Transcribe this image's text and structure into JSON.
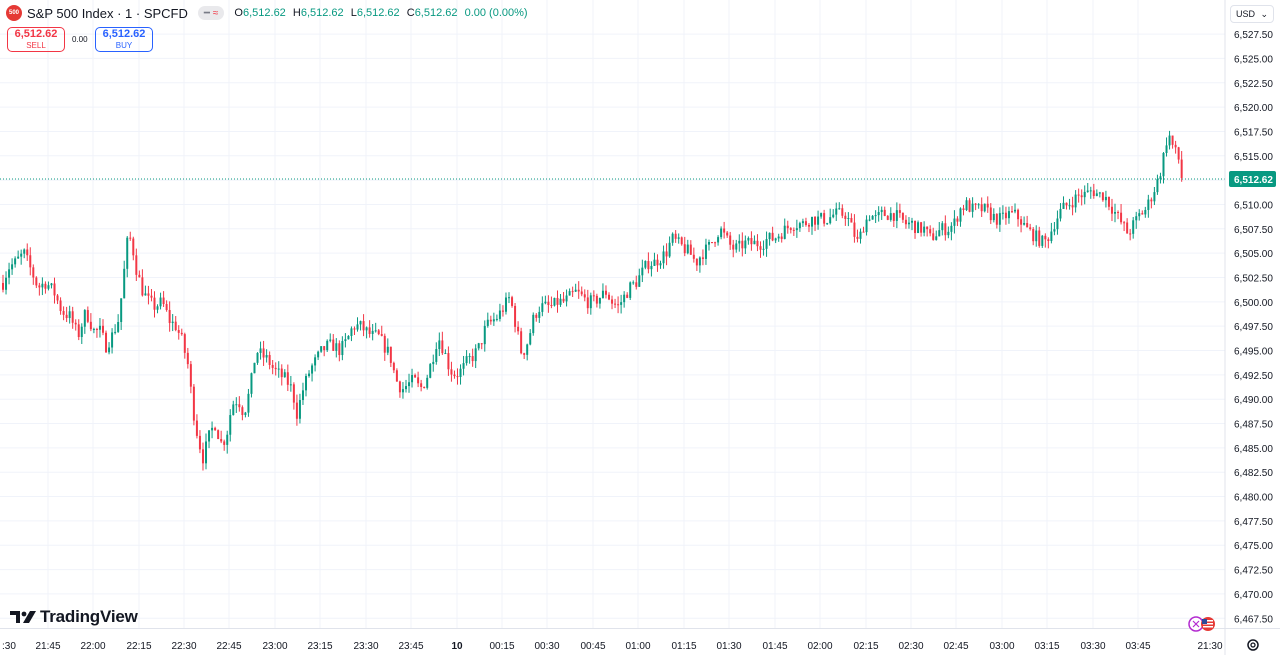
{
  "header": {
    "symbol_badge": "500",
    "symbol_name": "S&P 500 Index · 1 · SPCFD",
    "ohlc": {
      "o_label": "O",
      "o_value": "6,512.62",
      "h_label": "H",
      "h_value": "6,512.62",
      "l_label": "L",
      "l_value": "6,512.62",
      "c_label": "C",
      "c_value": "6,512.62",
      "change": "0.00 (0.00%)"
    }
  },
  "trade": {
    "sell_price": "6,512.62",
    "sell_label": "SELL",
    "spread": "0.00",
    "buy_price": "6,512.62",
    "buy_label": "BUY"
  },
  "currency": "USD",
  "brand": "TradingView",
  "colors": {
    "up": "#089981",
    "down": "#f23645",
    "last_price_line": "#089981"
  },
  "chart_data": {
    "type": "candlestick",
    "symbol": "S&P 500 Index",
    "interval": "1",
    "ylim": [
      6466.5,
      6531
    ],
    "y_ticks": [
      6527.5,
      6525,
      6522.5,
      6520,
      6517.5,
      6515,
      6512.5,
      6510,
      6507.5,
      6505,
      6502.5,
      6500,
      6497.5,
      6495,
      6492.5,
      6490,
      6487.5,
      6485,
      6482.5,
      6480,
      6477.5,
      6475,
      6472.5,
      6470,
      6467.5
    ],
    "y_tick_labels": [
      "6,527.50",
      "6,525.00",
      "6,522.50",
      "6,520.00",
      "6,517.50",
      "6,515.00",
      "6,512.50",
      "6,510.00",
      "6,507.50",
      "6,505.00",
      "6,502.50",
      "6,500.00",
      "6,497.50",
      "6,495.00",
      "6,492.50",
      "6,490.00",
      "6,487.50",
      "6,485.00",
      "6,482.50",
      "6,480.00",
      "6,477.50",
      "6,475.00",
      "6,472.50",
      "6,470.00",
      "6,467.50"
    ],
    "x_tick_labels": [
      ":30",
      "21:45",
      "22:00",
      "22:15",
      "22:30",
      "22:45",
      "23:00",
      "23:15",
      "23:30",
      "23:45",
      "10",
      "00:15",
      "00:30",
      "00:45",
      "01:00",
      "01:15",
      "01:30",
      "01:45",
      "02:00",
      "02:15",
      "02:30",
      "02:45",
      "03:00",
      "03:15",
      "03:30",
      "03:45",
      "21:30"
    ],
    "last_price": 6512.62,
    "last_price_label": "6,512.62",
    "grid": true,
    "series_path": [
      [
        0,
        6501
      ],
      [
        8,
        6503.5
      ],
      [
        15,
        6504
      ],
      [
        24,
        6505
      ],
      [
        32,
        6503
      ],
      [
        38,
        6501.5
      ],
      [
        46,
        6502
      ],
      [
        54,
        6501
      ],
      [
        62,
        6499
      ],
      [
        70,
        6498.5
      ],
      [
        78,
        6496.5
      ],
      [
        86,
        6499
      ],
      [
        94,
        6497
      ],
      [
        100,
        6497
      ],
      [
        106,
        6495.5
      ],
      [
        112,
        6496.5
      ],
      [
        118,
        6498
      ],
      [
        122,
        6501
      ],
      [
        127,
        6506
      ],
      [
        131,
        6506.5
      ],
      [
        137,
        6503
      ],
      [
        143,
        6501
      ],
      [
        149,
        6500
      ],
      [
        155,
        6499.5
      ],
      [
        162,
        6500
      ],
      [
        170,
        6498
      ],
      [
        176,
        6497.5
      ],
      [
        182,
        6496
      ],
      [
        188,
        6493.5
      ],
      [
        193,
        6489
      ],
      [
        198,
        6486
      ],
      [
        203,
        6484
      ],
      [
        210,
        6486.5
      ],
      [
        215,
        6487.5
      ],
      [
        221,
        6485.5
      ],
      [
        226,
        6486
      ],
      [
        232,
        6489.5
      ],
      [
        238,
        6490
      ],
      [
        244,
        6488.5
      ],
      [
        250,
        6491
      ],
      [
        256,
        6495
      ],
      [
        262,
        6494.5
      ],
      [
        268,
        6494
      ],
      [
        274,
        6493
      ],
      [
        280,
        6492.5
      ],
      [
        286,
        6492
      ],
      [
        292,
        6491
      ],
      [
        297,
        6488.5
      ],
      [
        303,
        6491
      ],
      [
        310,
        6493
      ],
      [
        316,
        6494
      ],
      [
        322,
        6495
      ],
      [
        328,
        6495.5
      ],
      [
        334,
        6495.5
      ],
      [
        340,
        6495
      ],
      [
        347,
        6496
      ],
      [
        353,
        6497.5
      ],
      [
        360,
        6497.5
      ],
      [
        366,
        6497
      ],
      [
        372,
        6496.5
      ],
      [
        378,
        6496.5
      ],
      [
        384,
        6495.5
      ],
      [
        390,
        6494.5
      ],
      [
        396,
        6492
      ],
      [
        402,
        6491
      ],
      [
        408,
        6491.5
      ],
      [
        414,
        6492
      ],
      [
        420,
        6491
      ],
      [
        426,
        6492
      ],
      [
        432,
        6494
      ],
      [
        438,
        6496.5
      ],
      [
        444,
        6495
      ],
      [
        450,
        6493
      ],
      [
        456,
        6492.5
      ],
      [
        462,
        6493
      ],
      [
        468,
        6494
      ],
      [
        474,
        6494.5
      ],
      [
        480,
        6495.5
      ],
      [
        486,
        6497.5
      ],
      [
        492,
        6498
      ],
      [
        498,
        6498.5
      ],
      [
        504,
        6499.5
      ],
      [
        510,
        6500.5
      ],
      [
        516,
        6497.5
      ],
      [
        522,
        6494.5
      ],
      [
        528,
        6496
      ],
      [
        534,
        6498.5
      ],
      [
        540,
        6499.5
      ],
      [
        546,
        6499.5
      ],
      [
        552,
        6499.5
      ],
      [
        558,
        6500
      ],
      [
        564,
        6500
      ],
      [
        570,
        6500.5
      ],
      [
        576,
        6501
      ],
      [
        582,
        6500.5
      ],
      [
        588,
        6500
      ],
      [
        594,
        6500
      ],
      [
        600,
        6500.5
      ],
      [
        606,
        6501
      ],
      [
        612,
        6500
      ],
      [
        618,
        6499.5
      ],
      [
        624,
        6500.5
      ],
      [
        630,
        6501.5
      ],
      [
        636,
        6502
      ],
      [
        642,
        6503
      ],
      [
        648,
        6504
      ],
      [
        654,
        6504
      ],
      [
        660,
        6504.5
      ],
      [
        666,
        6505
      ],
      [
        672,
        6506.5
      ],
      [
        678,
        6506
      ],
      [
        684,
        6505.5
      ],
      [
        690,
        6505
      ],
      [
        696,
        6504
      ],
      [
        702,
        6505
      ],
      [
        708,
        6505.5
      ],
      [
        714,
        6506.5
      ],
      [
        720,
        6507.5
      ],
      [
        726,
        6506.5
      ],
      [
        732,
        6505.5
      ],
      [
        738,
        6505.5
      ],
      [
        744,
        6506
      ],
      [
        750,
        6506
      ],
      [
        756,
        6506
      ],
      [
        762,
        6506
      ],
      [
        768,
        6506.5
      ],
      [
        774,
        6506.5
      ],
      [
        780,
        6507
      ],
      [
        786,
        6507.5
      ],
      [
        792,
        6508
      ],
      [
        798,
        6508
      ],
      [
        804,
        6508
      ],
      [
        810,
        6508.5
      ],
      [
        816,
        6508.5
      ],
      [
        822,
        6508.5
      ],
      [
        828,
        6508.5
      ],
      [
        834,
        6509
      ],
      [
        840,
        6509
      ],
      [
        846,
        6509
      ],
      [
        852,
        6507.5
      ],
      [
        858,
        6506
      ],
      [
        864,
        6508
      ],
      [
        870,
        6509
      ],
      [
        876,
        6508.5
      ],
      [
        882,
        6509
      ],
      [
        888,
        6509
      ],
      [
        894,
        6509
      ],
      [
        900,
        6508.5
      ],
      [
        906,
        6508
      ],
      [
        912,
        6508
      ],
      [
        918,
        6507.5
      ],
      [
        924,
        6507.5
      ],
      [
        930,
        6506.5
      ],
      [
        936,
        6507
      ],
      [
        942,
        6507.5
      ],
      [
        948,
        6507.5
      ],
      [
        954,
        6508
      ],
      [
        960,
        6509.5
      ],
      [
        966,
        6510
      ],
      [
        972,
        6509.5
      ],
      [
        978,
        6509.5
      ],
      [
        984,
        6509.5
      ],
      [
        990,
        6509
      ],
      [
        996,
        6508.5
      ],
      [
        1002,
        6508.5
      ],
      [
        1008,
        6509
      ],
      [
        1014,
        6509
      ],
      [
        1020,
        6508.5
      ],
      [
        1026,
        6507.5
      ],
      [
        1032,
        6507
      ],
      [
        1038,
        6506.5
      ],
      [
        1044,
        6506
      ],
      [
        1050,
        6507
      ],
      [
        1056,
        6508.5
      ],
      [
        1062,
        6509.5
      ],
      [
        1068,
        6510
      ],
      [
        1074,
        6510.5
      ],
      [
        1080,
        6511
      ],
      [
        1086,
        6511
      ],
      [
        1092,
        6511.5
      ],
      [
        1098,
        6511
      ],
      [
        1104,
        6511
      ],
      [
        1110,
        6510
      ],
      [
        1116,
        6509
      ],
      [
        1122,
        6508
      ],
      [
        1128,
        6507
      ],
      [
        1134,
        6508
      ],
      [
        1140,
        6509
      ],
      [
        1146,
        6509.5
      ],
      [
        1152,
        6511
      ],
      [
        1158,
        6512.5
      ],
      [
        1162,
        6514
      ],
      [
        1166,
        6516.5
      ],
      [
        1170,
        6517
      ],
      [
        1174,
        6515.5
      ],
      [
        1178,
        6515
      ],
      [
        1182,
        6512.6
      ]
    ]
  }
}
